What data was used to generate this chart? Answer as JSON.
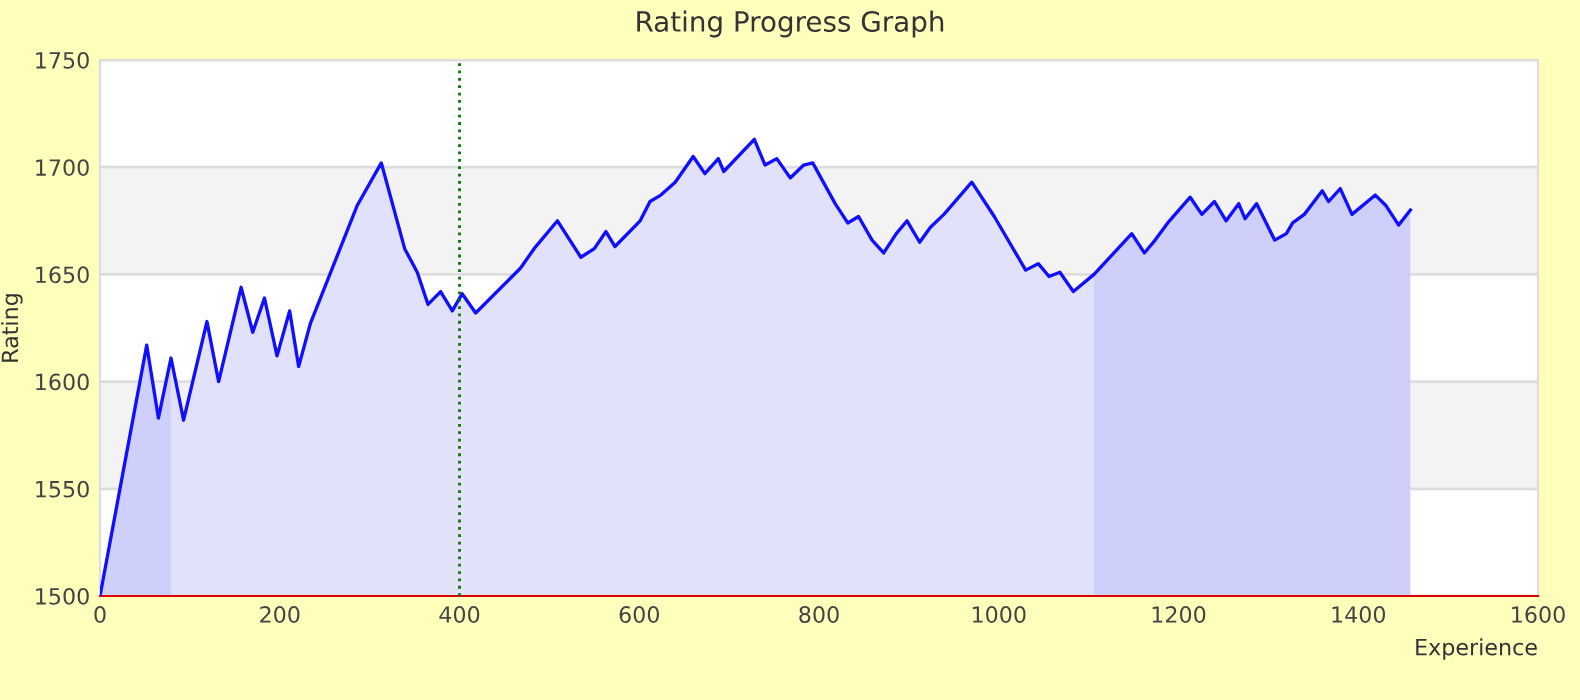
{
  "chart_data": {
    "type": "line",
    "title": "Rating Progress Graph",
    "xlabel": "Experience",
    "ylabel": "Rating",
    "xlim": [
      0,
      1600
    ],
    "xticks": [
      0,
      200,
      400,
      600,
      800,
      1000,
      1200,
      1400,
      1600
    ],
    "ylim": [
      1500,
      1750
    ],
    "yticks": [
      1500,
      1550,
      1600,
      1650,
      1700,
      1750
    ],
    "grid": "y",
    "bands": [
      {
        "axis": "y",
        "from": 1550,
        "to": 1600,
        "color": "#f3f3f3"
      },
      {
        "axis": "y",
        "from": 1650,
        "to": 1700,
        "color": "#f3f3f3"
      }
    ],
    "ref_lines": [
      {
        "axis": "x",
        "value": 400,
        "color": "#007700",
        "line_style": "dotted"
      }
    ],
    "series": [
      {
        "type": "area",
        "color": "#cfcffc",
        "x": [
          0,
          52,
          65,
          79
        ],
        "values": [
          1500,
          1617,
          1583,
          1611
        ]
      },
      {
        "type": "area",
        "color": "#e1e1fa",
        "x": [
          79,
          93,
          119,
          132,
          157,
          170,
          183,
          197,
          211,
          221,
          234,
          286,
          313,
          339,
          353,
          365,
          379,
          392,
          403,
          418,
          468,
          483,
          509,
          535,
          550,
          563,
          573,
          601,
          612,
          624,
          640,
          660,
          673,
          688,
          694,
          728,
          740,
          753,
          768,
          783,
          793,
          818,
          832,
          844,
          859,
          872,
          886,
          898,
          912,
          924,
          939,
          970,
          995,
          1030,
          1044,
          1056,
          1068,
          1083,
          1106
        ],
        "values": [
          1611,
          1582,
          1628,
          1600,
          1644,
          1623,
          1639,
          1612,
          1633,
          1607,
          1627,
          1682,
          1702,
          1662,
          1651,
          1636,
          1642,
          1633,
          1641,
          1632,
          1653,
          1662,
          1675,
          1658,
          1662,
          1670,
          1663,
          1675,
          1684,
          1687,
          1693,
          1705,
          1697,
          1704,
          1698,
          1713,
          1701,
          1704,
          1695,
          1701,
          1702,
          1683,
          1674,
          1677,
          1666,
          1660,
          1669,
          1675,
          1665,
          1672,
          1678,
          1693,
          1677,
          1652,
          1655,
          1649,
          1651,
          1642,
          1650
        ]
      },
      {
        "type": "area",
        "color": "#cfcffc",
        "x": [
          1106,
          1148,
          1162,
          1174,
          1188,
          1213,
          1226,
          1240,
          1253,
          1267,
          1274,
          1287,
          1307,
          1320,
          1327,
          1340,
          1360,
          1367,
          1380,
          1393,
          1419,
          1431,
          1445,
          1458
        ],
        "values": [
          1650,
          1669,
          1660,
          1666,
          1674,
          1686,
          1678,
          1684,
          1675,
          1683,
          1676,
          1683,
          1666,
          1669,
          1674,
          1678,
          1689,
          1684,
          1690,
          1678,
          1687,
          1682,
          1673,
          1680
        ]
      },
      {
        "color": "#1010ff",
        "x": [
          0,
          52,
          65,
          79,
          93,
          119,
          132,
          157,
          170,
          183,
          197,
          211,
          221,
          234,
          286,
          313,
          339,
          353,
          365,
          379,
          392,
          403,
          418,
          468,
          483,
          509,
          535,
          550,
          563,
          573,
          601,
          612,
          624,
          640,
          660,
          673,
          688,
          694,
          728,
          740,
          753,
          768,
          783,
          793,
          818,
          832,
          844,
          859,
          872,
          886,
          898,
          912,
          924,
          939,
          970,
          995,
          1030,
          1044,
          1056,
          1068,
          1083,
          1106,
          1148,
          1162,
          1174,
          1188,
          1213,
          1226,
          1240,
          1253,
          1267,
          1274,
          1287,
          1307,
          1320,
          1327,
          1340,
          1360,
          1367,
          1380,
          1393,
          1419,
          1431,
          1445,
          1458
        ],
        "values": [
          1500,
          1617,
          1583,
          1611,
          1582,
          1628,
          1600,
          1644,
          1623,
          1639,
          1612,
          1633,
          1607,
          1627,
          1682,
          1702,
          1662,
          1651,
          1636,
          1642,
          1633,
          1641,
          1632,
          1653,
          1662,
          1675,
          1658,
          1662,
          1670,
          1663,
          1675,
          1684,
          1687,
          1693,
          1705,
          1697,
          1704,
          1698,
          1713,
          1701,
          1704,
          1695,
          1701,
          1702,
          1683,
          1674,
          1677,
          1666,
          1660,
          1669,
          1675,
          1665,
          1672,
          1678,
          1693,
          1677,
          1652,
          1655,
          1649,
          1651,
          1642,
          1650,
          1669,
          1660,
          1666,
          1674,
          1686,
          1678,
          1684,
          1675,
          1683,
          1676,
          1683,
          1666,
          1669,
          1674,
          1678,
          1689,
          1684,
          1690,
          1678,
          1687,
          1682,
          1673,
          1680
        ]
      }
    ]
  }
}
